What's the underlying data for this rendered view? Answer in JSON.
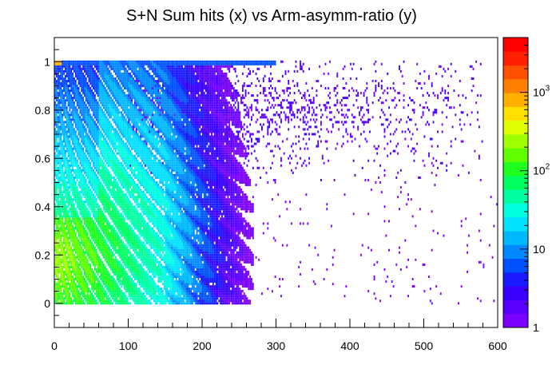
{
  "chart_data": {
    "type": "heatmap",
    "title": "S+N Sum hits (x) vs Arm-asymm-ratio (y)",
    "xlabel": "",
    "ylabel": "",
    "xlim": [
      0,
      600
    ],
    "ylim": [
      -0.1,
      1.1
    ],
    "x_ticks": [
      "0",
      "100",
      "200",
      "300",
      "400",
      "500",
      "600"
    ],
    "y_ticks": [
      "0",
      "0.2",
      "0.4",
      "0.6",
      "0.8",
      "1"
    ],
    "z_scale": "log",
    "z_range": [
      1,
      5000
    ],
    "z_ticks": [
      "1",
      "10",
      "10",
      "10"
    ],
    "z_tick_exponents": [
      "",
      "",
      "2",
      "3"
    ],
    "colormap": [
      "#7a00ff",
      "#5a00ff",
      "#3a00ff",
      "#1a1aff",
      "#0050ff",
      "#0088ff",
      "#00b8ff",
      "#00e0ff",
      "#00ffe0",
      "#00ffa0",
      "#00ff60",
      "#20ff20",
      "#60ff00",
      "#a0ff00",
      "#e0ff00",
      "#ffe000",
      "#ffb000",
      "#ff8000",
      "#ff5000",
      "#ff2000",
      "#ff0000"
    ],
    "density_regions": [
      {
        "description": "dense arc/ring region",
        "x_range": [
          0,
          270
        ],
        "y_range": [
          0,
          1
        ],
        "counts": "10-500"
      },
      {
        "description": "band near y=1",
        "x_range": [
          0,
          300
        ],
        "y_range": [
          0.98,
          1.0
        ],
        "counts": "1-1000"
      },
      {
        "description": "sparse diffuse region",
        "x_range": [
          100,
          580
        ],
        "y_range": [
          0.5,
          1.0
        ],
        "counts": "1-5"
      },
      {
        "description": "sparse tail",
        "x_range": [
          250,
          600
        ],
        "y_range": [
          0,
          0.6
        ],
        "counts": "1"
      }
    ],
    "grid": false,
    "legend": "colorbar-right"
  }
}
